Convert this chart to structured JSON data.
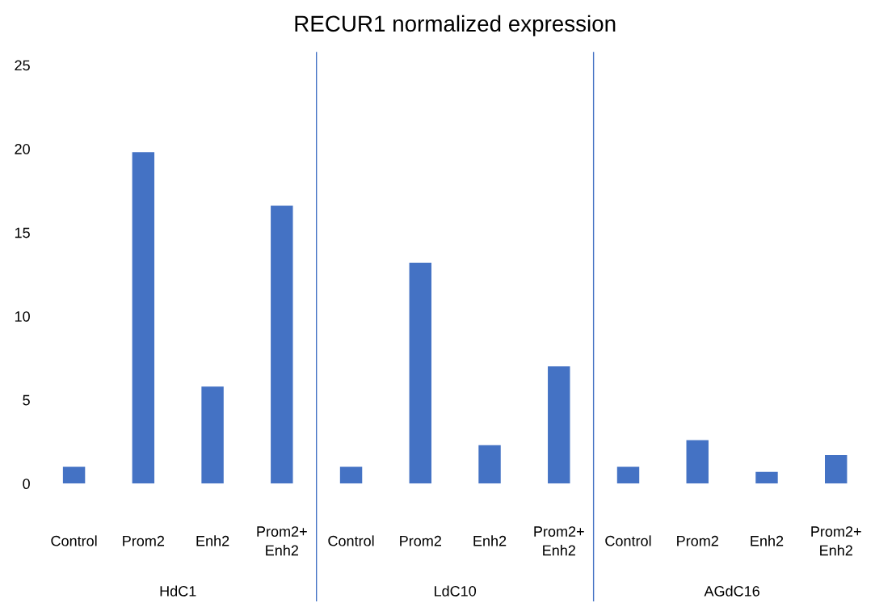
{
  "chart_data": {
    "type": "bar",
    "title": "RECUR1 normalized expression",
    "categories": [
      "Control",
      "Prom2",
      "Enh2",
      "Prom2+\nEnh2",
      "Control",
      "Prom2",
      "Enh2",
      "Prom2+\nEnh2",
      "Control",
      "Prom2",
      "Enh2",
      "Prom2+\nEnh2"
    ],
    "values": [
      1.0,
      19.8,
      5.8,
      16.6,
      1.0,
      13.2,
      2.3,
      7.0,
      1.0,
      2.6,
      0.7,
      1.7
    ],
    "color": "#4472c4",
    "ylim": [
      0,
      25
    ],
    "yticks": [
      0,
      5,
      10,
      15,
      20,
      25
    ],
    "grid": false,
    "legend": false,
    "annotations": [
      "HdC1",
      "LdC10",
      "AGdC16"
    ]
  }
}
